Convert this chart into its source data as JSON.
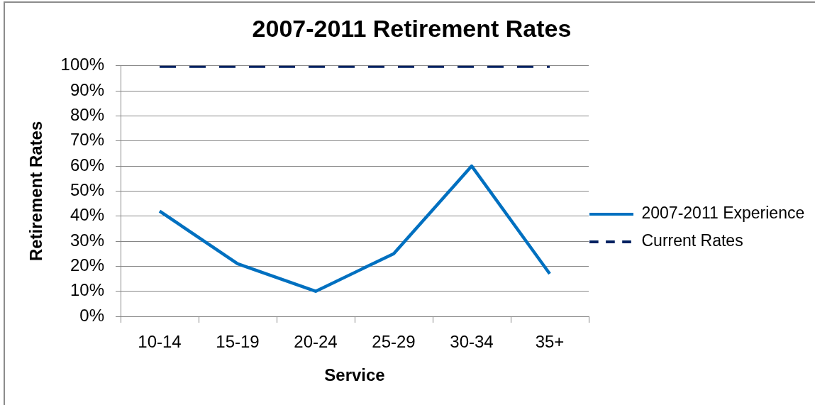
{
  "chart_data": {
    "type": "line",
    "title": "2007-2011 Retirement Rates",
    "xlabel": "Service",
    "ylabel": "Retirement Rates",
    "categories": [
      "10-14",
      "15-19",
      "20-24",
      "25-29",
      "30-34",
      "35+"
    ],
    "series": [
      {
        "name": "2007-2011 Experience",
        "color": "#0070c0",
        "line_style": "solid",
        "values": [
          42,
          21,
          10,
          25,
          60,
          17
        ]
      },
      {
        "name": "Current Rates",
        "color": "#002060",
        "line_style": "dashed",
        "values": [
          100,
          100,
          100,
          100,
          100,
          100
        ]
      }
    ],
    "ylim": [
      0,
      100
    ],
    "yticks": [
      {
        "value": 0,
        "label": "0%"
      },
      {
        "value": 10,
        "label": "10%"
      },
      {
        "value": 20,
        "label": "20%"
      },
      {
        "value": 30,
        "label": "30%"
      },
      {
        "value": 40,
        "label": "40%"
      },
      {
        "value": 50,
        "label": "50%"
      },
      {
        "value": 60,
        "label": "60%"
      },
      {
        "value": 70,
        "label": "70%"
      },
      {
        "value": 80,
        "label": "80%"
      },
      {
        "value": 90,
        "label": "90%"
      },
      {
        "value": 100,
        "label": "100%"
      }
    ],
    "grid": "y",
    "legend": "right",
    "marker": "none"
  }
}
